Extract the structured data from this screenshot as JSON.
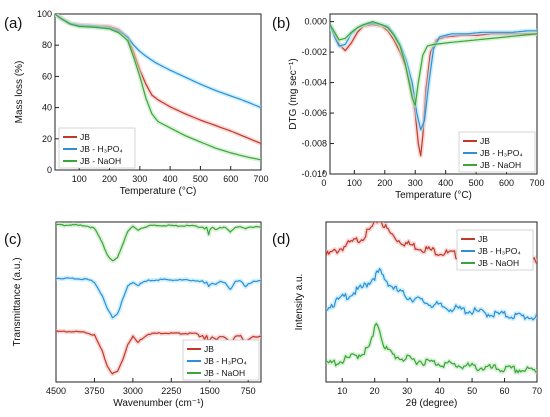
{
  "colors": {
    "JB": "#c0392b",
    "JB_H3PO4": "#2f8fd8",
    "JB_NaOH": "#3aa63a",
    "JB_halo": "#f2b7b7",
    "H3PO4_halo": "#a8e4f6",
    "NaOH_halo": "#b9e6b4"
  },
  "chart_data": [
    {
      "panel": "(a)",
      "type": "line",
      "xlabel": "Temperature (°C)",
      "ylabel": "Mass loss (%)",
      "xlim": [
        20,
        700
      ],
      "ylim": [
        0,
        100
      ],
      "xticks": [
        100,
        200,
        300,
        400,
        500,
        600,
        700
      ],
      "yticks": [
        0,
        20,
        40,
        60,
        80,
        100
      ],
      "legend_position": "bottom-left",
      "series": [
        {
          "name": "JB",
          "color_key": "JB",
          "x": [
            20,
            40,
            70,
            100,
            150,
            200,
            230,
            260,
            280,
            300,
            320,
            340,
            360,
            400,
            450,
            500,
            550,
            600,
            650,
            700
          ],
          "y": [
            100,
            97.5,
            94,
            93,
            92.5,
            92,
            90,
            85,
            75,
            64,
            55,
            48,
            45,
            40.5,
            36,
            32,
            28.5,
            25,
            21,
            17
          ]
        },
        {
          "name": "JB - H₃PO₄",
          "color_key": "JB_H3PO4",
          "x": [
            20,
            40,
            70,
            100,
            150,
            200,
            230,
            260,
            280,
            300,
            320,
            350,
            400,
            450,
            500,
            550,
            600,
            650,
            700
          ],
          "y": [
            100,
            97,
            94,
            92.5,
            92,
            91,
            89,
            85,
            80,
            76,
            73,
            69,
            64,
            59.5,
            55,
            51,
            47.5,
            44,
            40
          ]
        },
        {
          "name": "JB - NaOH",
          "color_key": "JB_NaOH",
          "x": [
            20,
            40,
            70,
            100,
            150,
            200,
            230,
            260,
            280,
            300,
            320,
            340,
            360,
            400,
            450,
            500,
            550,
            600,
            650,
            700
          ],
          "y": [
            100,
            97,
            93.5,
            92,
            91.5,
            90.5,
            88,
            83,
            72,
            60,
            46,
            36,
            31,
            27,
            22,
            18,
            14,
            11,
            8.5,
            6.5
          ]
        }
      ]
    },
    {
      "panel": "(b)",
      "type": "line",
      "xlabel": "Temperature (°C)",
      "ylabel": "DTG (mg sec⁻¹)",
      "xlim": [
        20,
        700
      ],
      "ylim": [
        -0.01,
        0.0005
      ],
      "xticks": [
        0,
        100,
        200,
        300,
        400,
        500,
        600,
        700
      ],
      "yticks": [
        0.0,
        -0.002,
        -0.004,
        -0.006,
        -0.008,
        -0.01
      ],
      "ytick_labels": [
        "0.000",
        "-0.002",
        "-0.004",
        "-0.006",
        "-0.008",
        "-0.010"
      ],
      "legend_position": "bottom-right",
      "series": [
        {
          "name": "JB",
          "color_key": "JB",
          "x": [
            20,
            35,
            50,
            70,
            90,
            110,
            130,
            160,
            190,
            210,
            230,
            250,
            270,
            285,
            300,
            310,
            318,
            325,
            335,
            350,
            370,
            400,
            450,
            500,
            550,
            600,
            650,
            700
          ],
          "y": [
            -0.0003,
            -0.0008,
            -0.0015,
            -0.0019,
            -0.0014,
            -0.0007,
            -0.0003,
            -0.0002,
            -0.0003,
            -0.0006,
            -0.0012,
            -0.002,
            -0.003,
            -0.0042,
            -0.006,
            -0.008,
            -0.0088,
            -0.0075,
            -0.0045,
            -0.002,
            -0.0012,
            -0.001,
            -0.0009,
            -0.0009,
            -0.0008,
            -0.0008,
            -0.0008,
            -0.0008
          ]
        },
        {
          "name": "JB - H₃PO₄",
          "color_key": "JB_H3PO4",
          "x": [
            20,
            35,
            50,
            70,
            90,
            110,
            130,
            160,
            190,
            210,
            230,
            250,
            270,
            290,
            305,
            318,
            330,
            345,
            360,
            380,
            420,
            470,
            520,
            570,
            620,
            670,
            700
          ],
          "y": [
            -0.0002,
            -0.001,
            -0.0016,
            -0.0015,
            -0.0008,
            -0.0004,
            -0.0002,
            -0.0001,
            -0.0002,
            -0.0003,
            -0.0008,
            -0.0015,
            -0.0025,
            -0.004,
            -0.006,
            -0.0071,
            -0.0065,
            -0.004,
            -0.0018,
            -0.001,
            -0.0008,
            -0.0008,
            -0.0007,
            -0.0007,
            -0.0007,
            -0.0006,
            -0.0006
          ]
        },
        {
          "name": "JB - NaOH",
          "color_key": "JB_NaOH",
          "x": [
            20,
            35,
            50,
            70,
            90,
            110,
            130,
            160,
            190,
            210,
            230,
            250,
            265,
            280,
            290,
            300,
            310,
            325,
            340,
            360,
            400,
            450,
            500,
            550,
            600,
            650,
            700
          ],
          "y": [
            -0.0002,
            -0.0007,
            -0.0012,
            -0.0011,
            -0.0007,
            -0.0004,
            -0.0002,
            0.0,
            -0.0002,
            -0.0004,
            -0.0009,
            -0.0016,
            -0.0026,
            -0.004,
            -0.005,
            -0.0055,
            -0.004,
            -0.0022,
            -0.0016,
            -0.0015,
            -0.0014,
            -0.0013,
            -0.0012,
            -0.0011,
            -0.001,
            -0.0009,
            -0.0008
          ]
        }
      ]
    },
    {
      "panel": "(c)",
      "type": "line",
      "xlabel": "Wavenumber (cm⁻¹)",
      "ylabel": "Transmittance (a.u.)",
      "xlim": [
        4500,
        500
      ],
      "reversed_x": true,
      "xticks": [
        4500,
        3750,
        3000,
        2250,
        1500,
        750
      ],
      "legend_position": "bottom-right",
      "series": [
        {
          "name": "JB",
          "color_key": "JB",
          "offset": 0.0,
          "x": [
            4500,
            4200,
            3900,
            3750,
            3600,
            3500,
            3400,
            3300,
            3200,
            3100,
            3000,
            2950,
            2900,
            2850,
            2700,
            2400,
            2200,
            1900,
            1750,
            1700,
            1640,
            1600,
            1560,
            1520,
            1500,
            1450,
            1380,
            1300,
            1200,
            1100,
            1050,
            1000,
            900,
            800,
            750,
            650,
            500
          ],
          "y": [
            0.98,
            0.98,
            0.96,
            0.9,
            0.55,
            0.22,
            0.05,
            0.1,
            0.35,
            0.7,
            0.88,
            0.8,
            0.74,
            0.8,
            0.93,
            0.95,
            0.94,
            0.94,
            0.93,
            0.88,
            0.9,
            0.82,
            0.9,
            0.7,
            0.78,
            0.86,
            0.8,
            0.88,
            0.86,
            0.7,
            0.78,
            0.88,
            0.9,
            0.7,
            0.8,
            0.86,
            0.88
          ]
        },
        {
          "name": "JB - H₃PO₄",
          "color_key": "JB_H3PO4",
          "offset": 1.0,
          "x": [
            4500,
            4200,
            3900,
            3750,
            3600,
            3500,
            3400,
            3300,
            3200,
            3100,
            3000,
            2950,
            2900,
            2850,
            2700,
            2400,
            2200,
            1900,
            1750,
            1700,
            1640,
            1600,
            1560,
            1520,
            1500,
            1450,
            1380,
            1300,
            1200,
            1100,
            1050,
            1000,
            900,
            800,
            750,
            650,
            500
          ],
          "y": [
            0.98,
            0.98,
            0.96,
            0.9,
            0.6,
            0.3,
            0.12,
            0.2,
            0.5,
            0.8,
            0.9,
            0.86,
            0.82,
            0.86,
            0.93,
            0.95,
            0.94,
            0.94,
            0.93,
            0.9,
            0.91,
            0.86,
            0.9,
            0.8,
            0.84,
            0.88,
            0.84,
            0.9,
            0.88,
            0.74,
            0.82,
            0.9,
            0.92,
            0.8,
            0.86,
            0.9,
            0.92
          ]
        },
        {
          "name": "JB - NaOH",
          "color_key": "JB_NaOH",
          "offset": 2.0,
          "x": [
            4500,
            4200,
            3900,
            3750,
            3600,
            3500,
            3400,
            3300,
            3200,
            3100,
            3000,
            2950,
            2900,
            2850,
            2700,
            2400,
            2200,
            1900,
            1750,
            1700,
            1640,
            1600,
            1560,
            1520,
            1500,
            1450,
            1380,
            1300,
            1200,
            1100,
            1050,
            1000,
            900,
            800,
            750,
            650,
            500
          ],
          "y": [
            0.98,
            0.98,
            0.96,
            0.9,
            0.6,
            0.32,
            0.18,
            0.25,
            0.55,
            0.85,
            0.94,
            0.9,
            0.86,
            0.9,
            0.96,
            0.97,
            0.96,
            0.96,
            0.95,
            0.93,
            0.94,
            0.9,
            0.92,
            0.76,
            0.86,
            0.92,
            0.88,
            0.93,
            0.92,
            0.82,
            0.88,
            0.93,
            0.95,
            0.88,
            0.92,
            0.94,
            0.95
          ]
        }
      ]
    },
    {
      "panel": "(d)",
      "type": "line",
      "xlabel": "2θ (degree)",
      "ylabel": "Intensity a.u.",
      "xlim": [
        5,
        70
      ],
      "xticks": [
        10,
        20,
        30,
        40,
        50,
        60,
        70
      ],
      "legend_position": "top-right",
      "series": [
        {
          "name": "JB",
          "color_key": "JB",
          "offset": 2.0,
          "x": [
            5,
            8,
            11,
            14,
            16,
            18,
            20,
            21.5,
            23,
            25,
            27,
            30,
            35,
            40,
            45,
            50,
            55,
            60,
            65,
            70
          ],
          "y": [
            0.3,
            0.4,
            0.52,
            0.62,
            0.7,
            0.82,
            1.0,
            1.15,
            0.95,
            0.78,
            0.66,
            0.56,
            0.46,
            0.38,
            0.32,
            0.27,
            0.24,
            0.21,
            0.19,
            0.17
          ]
        },
        {
          "name": "JB - H₃PO₄",
          "color_key": "JB_H3PO4",
          "offset": 1.0,
          "x": [
            5,
            8,
            11,
            14,
            16,
            18,
            20,
            21.5,
            23,
            25,
            27,
            30,
            35,
            40,
            45,
            50,
            55,
            60,
            65,
            70
          ],
          "y": [
            0.35,
            0.45,
            0.58,
            0.68,
            0.76,
            0.88,
            1.02,
            1.12,
            0.98,
            0.82,
            0.7,
            0.58,
            0.46,
            0.36,
            0.3,
            0.25,
            0.2,
            0.17,
            0.14,
            0.12
          ]
        },
        {
          "name": "JB - NaOH",
          "color_key": "JB_NaOH",
          "offset": 0.0,
          "x": [
            5,
            8,
            11,
            14,
            16,
            18,
            19.5,
            20.5,
            21.5,
            22.5,
            24,
            26,
            28,
            30,
            35,
            40,
            45,
            50,
            55,
            60,
            65,
            70
          ],
          "y": [
            0.25,
            0.3,
            0.36,
            0.44,
            0.5,
            0.6,
            0.85,
            1.2,
            1.05,
            0.75,
            0.55,
            0.45,
            0.4,
            0.37,
            0.32,
            0.28,
            0.24,
            0.2,
            0.17,
            0.15,
            0.13,
            0.12
          ]
        }
      ]
    }
  ]
}
